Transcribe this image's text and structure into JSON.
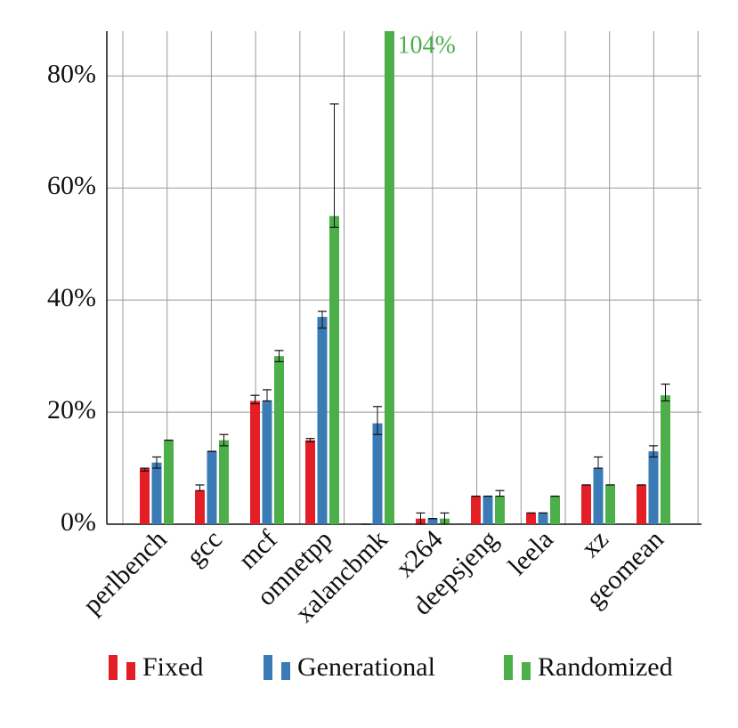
{
  "chart_data": {
    "type": "bar",
    "categories": [
      "perlbench",
      "gcc",
      "mcf",
      "omnetpp",
      "xalancbmk",
      "x264",
      "deepsjeng",
      "leela",
      "xz",
      "geomean"
    ],
    "series": [
      {
        "name": "Fixed",
        "color": "#e41e26",
        "values": [
          10,
          6,
          22,
          15,
          0,
          1,
          5,
          2,
          7,
          7
        ],
        "error_minus": [
          0.5,
          0,
          0.5,
          0.3,
          0,
          1,
          0,
          0,
          0,
          0
        ],
        "error_plus": [
          0,
          1,
          1,
          0.3,
          0,
          1,
          0,
          0,
          0,
          0
        ]
      },
      {
        "name": "Generational",
        "color": "#3a7bb5",
        "values": [
          11,
          13,
          22,
          37,
          18,
          1,
          5,
          2,
          10,
          13
        ],
        "error_minus": [
          1,
          0,
          0,
          2,
          2,
          0,
          0,
          0,
          0,
          1
        ],
        "error_plus": [
          1,
          0,
          2,
          1,
          3,
          0,
          0,
          0,
          2,
          1
        ]
      },
      {
        "name": "Randomized",
        "color": "#4daf4a",
        "values": [
          15,
          15,
          30,
          55,
          104,
          1,
          5,
          5,
          7,
          23
        ],
        "value_labels": [
          null,
          null,
          null,
          null,
          "104%",
          null,
          null,
          null,
          null,
          null
        ],
        "error_minus": [
          0,
          1,
          1,
          2,
          0,
          1,
          0,
          0,
          0,
          1
        ],
        "error_plus": [
          0,
          1,
          1,
          20,
          0,
          1,
          1,
          0,
          0,
          2
        ]
      }
    ],
    "ylim": [
      0,
      88
    ],
    "yticks": [
      {
        "value": 0,
        "label": "0%"
      },
      {
        "value": 20,
        "label": "20%"
      },
      {
        "value": 40,
        "label": "40%"
      },
      {
        "value": 60,
        "label": "60%"
      },
      {
        "value": 80,
        "label": "80%"
      }
    ],
    "grid": true,
    "legend": "bottom"
  }
}
